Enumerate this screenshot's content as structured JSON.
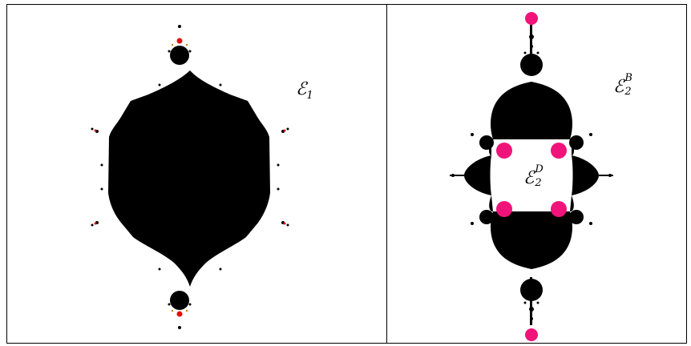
{
  "panels": [
    {
      "id": "left",
      "label": {
        "letter": "ℰ",
        "sub": "1",
        "sup": ""
      }
    },
    {
      "id": "right",
      "label_outer": {
        "letter": "ℰ",
        "sub": "2",
        "sup": "B"
      },
      "label_inner": {
        "letter": "ℰ",
        "sub": "2",
        "sup": "D"
      }
    }
  ],
  "colors": {
    "set": "#000000",
    "accent_pink": "#f0147a",
    "accent_red": "#e01010",
    "frame": "#000000"
  }
}
